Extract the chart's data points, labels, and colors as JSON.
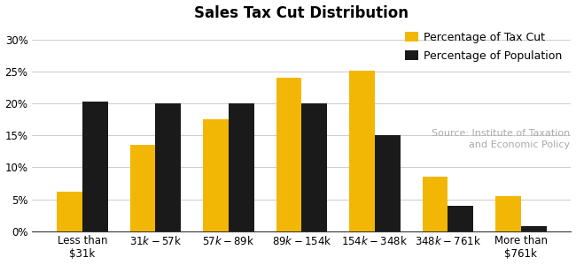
{
  "title": "Sales Tax Cut Distribution",
  "categories": [
    "Less than\n$31k",
    "$31k-$57k",
    "$57k-$89k",
    "$89k-$154k",
    "$154k-$348k",
    "$348k-$761k",
    "More than\n$761k"
  ],
  "tax_cut": [
    6.2,
    13.5,
    17.5,
    24.0,
    25.2,
    8.5,
    5.5
  ],
  "population": [
    20.3,
    20.0,
    20.0,
    20.0,
    15.0,
    4.0,
    0.8
  ],
  "bar_color_tax": "#F2B705",
  "bar_color_pop": "#1a1a1a",
  "legend_labels": [
    "Percentage of Tax Cut",
    "Percentage of Population"
  ],
  "source_text": "Source: Institute of Taxation\nand Economic Policy",
  "ylim": [
    0,
    32
  ],
  "yticks": [
    0,
    5,
    10,
    15,
    20,
    25,
    30
  ],
  "ytick_labels": [
    "0%",
    "5%",
    "10%",
    "15%",
    "20%",
    "25%",
    "30%"
  ],
  "bar_width": 0.35,
  "background_color": "#ffffff",
  "title_fontsize": 12,
  "tick_fontsize": 8.5,
  "legend_fontsize": 9,
  "source_fontsize": 8,
  "grid_color": "#cccccc",
  "source_color": "#aaaaaa"
}
